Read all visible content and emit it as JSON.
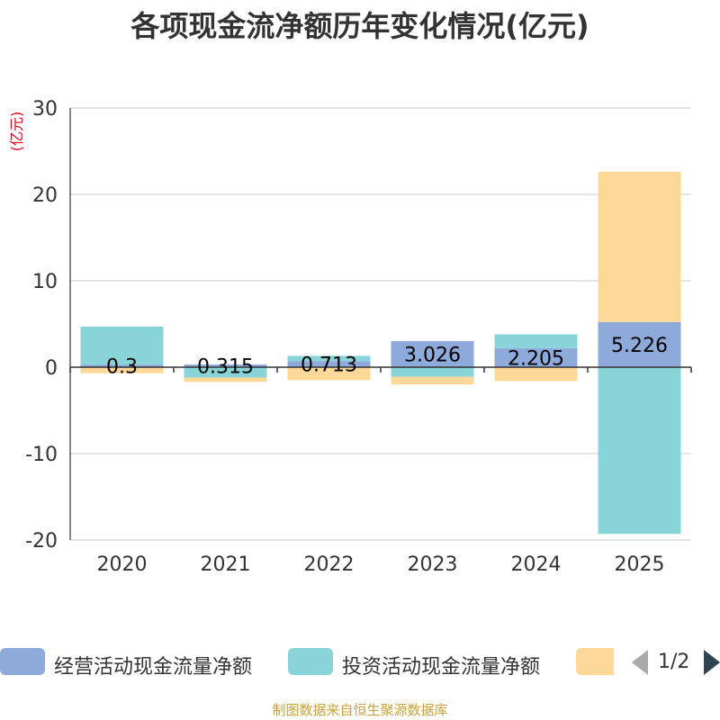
{
  "title": "各项现金流净额历年变化情况(亿元)",
  "chart_data": {
    "type": "bar",
    "stacked": true,
    "title": "各项现金流净额历年变化情况(亿元)",
    "ylabel": "(亿元)",
    "ylim": [
      -20,
      30
    ],
    "yticks": [
      30,
      20,
      10,
      0,
      -10,
      -20
    ],
    "categories": [
      "2020",
      "2021",
      "2022",
      "2023",
      "2024",
      "2025"
    ],
    "series": [
      {
        "name": "经营活动现金流量净额",
        "color": "#8eaadb",
        "values": [
          0.3,
          0.315,
          0.713,
          3.026,
          2.205,
          5.226
        ],
        "labels": [
          "0.3",
          "0.315",
          "0.713",
          "3.026",
          "2.205",
          "5.226"
        ]
      },
      {
        "name": "投资活动现金流量净额",
        "color": "#88d4d8",
        "values": [
          4.4,
          -1.2,
          0.6,
          -1.1,
          1.6,
          -19.3
        ]
      },
      {
        "name": "",
        "color": "#fdd899",
        "values": [
          -0.7,
          -0.5,
          -1.5,
          -0.9,
          -1.6,
          17.4
        ]
      }
    ],
    "legend_position": "bottom"
  },
  "legend": {
    "items": [
      {
        "label": "经营活动现金流量净额",
        "color": "#8eaadb"
      },
      {
        "label": "投资活动现金流量净额",
        "color": "#88d4d8"
      },
      {
        "label": "",
        "color": "#fdd899"
      }
    ],
    "page": "1/2"
  },
  "footer": "制图数据来自恒生聚源数据库"
}
